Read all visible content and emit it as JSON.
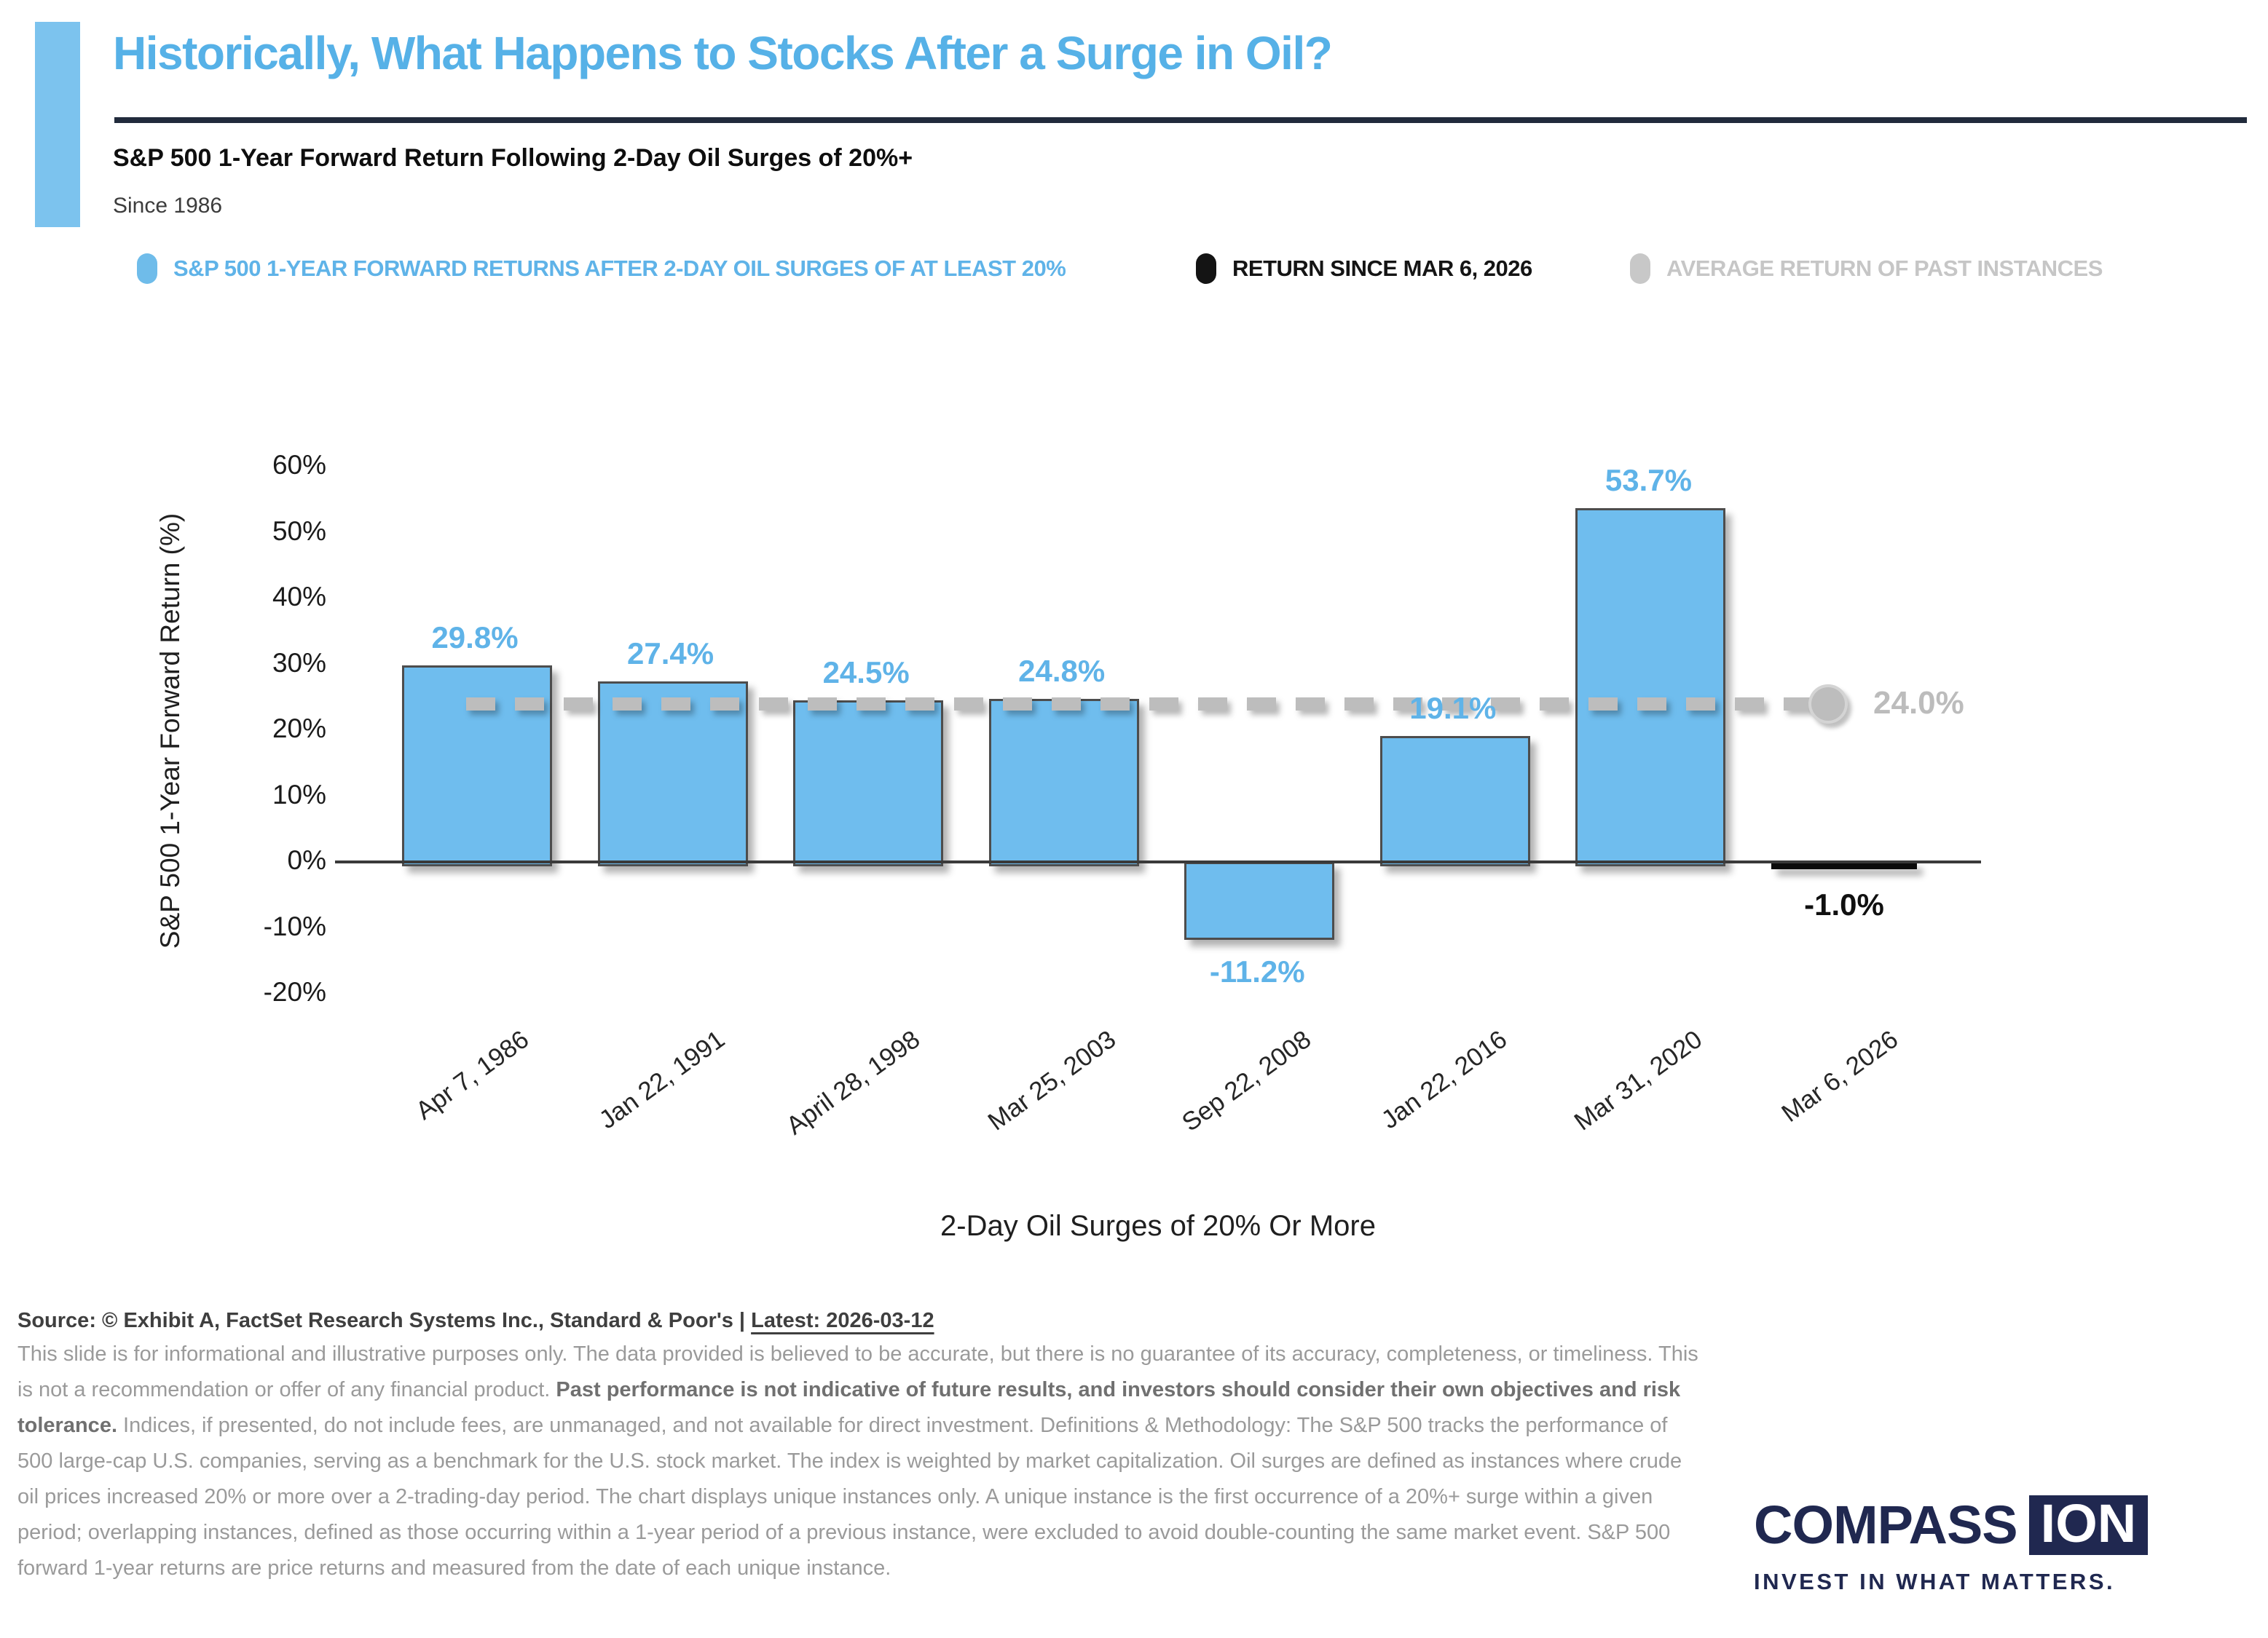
{
  "header": {
    "title": "Historically, What Happens to Stocks After a Surge in Oil?",
    "subtitle": "S&P 500 1-Year Forward Return Following 2-Day Oil Surges of 20%+",
    "period_note": "Since 1986"
  },
  "legend": {
    "items": [
      {
        "label": "S&P 500 1-YEAR FORWARD RETURNS AFTER 2-DAY OIL SURGES OF AT LEAST 20%",
        "color": "#6FBCEA"
      },
      {
        "label": "RETURN SINCE MAR 6, 2026",
        "color": "#141414"
      },
      {
        "label": "AVERAGE RETURN OF PAST INSTANCES",
        "color": "#C8C8C8"
      }
    ]
  },
  "chart_data": {
    "type": "bar",
    "categories": [
      "Apr 7, 1986",
      "Jan 22, 1991",
      "April 28, 1998",
      "Mar 25, 2003",
      "Sep 22, 2008",
      "Jan 22, 2016",
      "Mar 31, 2020",
      "Mar 6, 2026"
    ],
    "values": [
      29.8,
      27.4,
      24.5,
      24.8,
      -11.2,
      19.1,
      53.7,
      -1.0
    ],
    "value_labels": [
      "29.8%",
      "27.4%",
      "24.5%",
      "24.8%",
      "-11.2%",
      "19.1%",
      "53.7%",
      "-1.0%"
    ],
    "bar_kinds": [
      "past",
      "past",
      "past",
      "past",
      "past",
      "past",
      "past",
      "current"
    ],
    "average_line": {
      "value": 24.0,
      "label": "24.0%"
    },
    "xlabel": "2-Day Oil Surges of 20% Or More",
    "ylabel": "S&P 500 1-Year Forward Return (%)",
    "ylim": [
      -20,
      60
    ],
    "yticks": [
      60,
      50,
      40,
      30,
      20,
      10,
      0,
      -10,
      -20
    ],
    "ytick_labels": [
      "60%",
      "50%",
      "40%",
      "30%",
      "20%",
      "10%",
      "0%",
      "-10%",
      "-20%"
    ],
    "grid": false,
    "legend_position": "top"
  },
  "footer": {
    "source_prefix": "Source: © Exhibit A, FactSet Research Systems Inc., Standard & Poor's | ",
    "source_latest": "Latest: 2026-03-12",
    "disclaimer": {
      "segments": [
        {
          "text": "This slide is for informational and illustrative purposes only. The data provided is believed to be accurate, but there is no guarantee of its accuracy, completeness, or timeliness. This is not a recommendation or offer of any financial product. ",
          "bold": false
        },
        {
          "text": "Past performance is not indicative of future results, and investors should consider their own objectives and risk tolerance.",
          "bold": true
        },
        {
          "text": " Indices, if presented, do not include fees, are unmanaged, and not available for direct investment. Definitions & Methodology: The S&P 500 tracks the performance of 500 large-cap U.S. companies, serving as a benchmark for the U.S. stock market. The index is weighted by market capitalization. Oil surges are defined as instances where crude oil prices increased 20% or more over a 2-trading-day period. The chart displays unique instances only. A unique instance is the first occurrence of a 20%+ surge within a given period; overlapping instances, defined as those occurring within a 1-year period of a previous instance, were excluded to avoid double-counting the same market event. S&P 500 forward 1-year returns are price returns and measured from the date of each unique instance.",
          "bold": false
        }
      ]
    }
  },
  "logo": {
    "wordmark_left": "COMPASS",
    "wordmark_right": "ION",
    "tagline": "INVEST IN WHAT MATTERS."
  },
  "colors": {
    "title_blue": "#56B1E7",
    "accent_blue": "#7CC3EE",
    "bar_blue": "#6FBDEE",
    "bar_black": "#0B0B0B",
    "bar_border": "#4d4d4d",
    "average_gray": "#BDBDBD",
    "average_label_gray": "#BCBCBC",
    "value_label_blue": "#5FB3E8",
    "navy": "#202850",
    "divider_navy": "#212B3C"
  }
}
